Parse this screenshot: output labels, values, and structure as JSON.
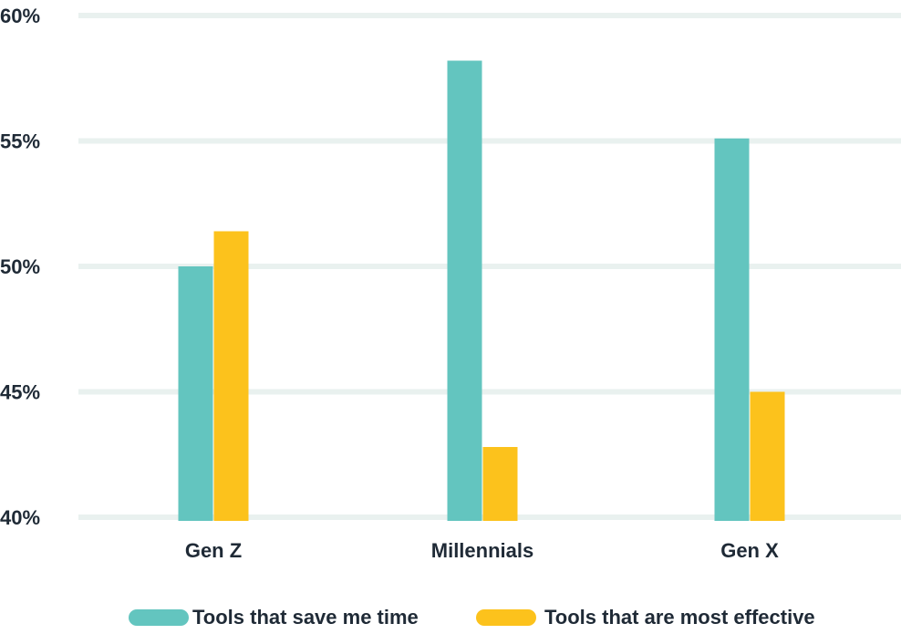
{
  "chart_data": {
    "type": "bar",
    "title": "",
    "xlabel": "",
    "ylabel": "",
    "categories": [
      "Gen Z",
      "Millennials",
      "Gen X"
    ],
    "series": [
      {
        "name": "Tools that save me time",
        "values": [
          50.0,
          58.2,
          55.1
        ],
        "color": "#63c5bf"
      },
      {
        "name": "Tools that are most effective",
        "values": [
          51.4,
          42.8,
          45.0
        ],
        "color": "#fcc21c"
      }
    ],
    "ylim": [
      40,
      60
    ],
    "yticks": [
      40,
      45,
      50,
      55,
      60
    ],
    "ytick_labels": [
      "40%",
      "45%",
      "50%",
      "55%",
      "60%"
    ],
    "grid": true,
    "legend_position": "bottom",
    "colors": {
      "grid": "#e9f1ef",
      "text": "#1f2a36",
      "background": "#ffffff"
    }
  }
}
